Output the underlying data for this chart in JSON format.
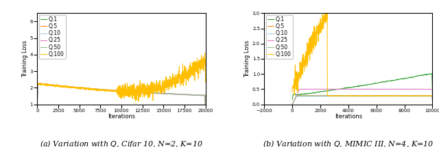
{
  "fig_width": 6.4,
  "fig_height": 2.15,
  "dpi": 100,
  "plot1": {
    "title": "(a) Variation with $Q$, Cifar 10, N=2, K=10",
    "xlabel": "Iterations",
    "ylabel": "Training Loss",
    "xlim": [
      0,
      20000
    ],
    "ylim": [
      1,
      6.5
    ],
    "yticks": [
      1,
      2,
      3,
      4,
      5,
      6
    ],
    "xticks": [
      0,
      2500,
      5000,
      7500,
      10000,
      12500,
      15000,
      17500,
      20000
    ],
    "series": [
      {
        "label": "Q:1",
        "color": "#2ca02c"
      },
      {
        "label": "Q:5",
        "color": "#ff7f0e"
      },
      {
        "label": "Q:10",
        "color": "#9ecae1"
      },
      {
        "label": "Q:25",
        "color": "#e377c2"
      },
      {
        "label": "Q:50",
        "color": "#8fbc8f"
      },
      {
        "label": "Q:100",
        "color": "#ffbf00"
      }
    ]
  },
  "plot2": {
    "title": "(b) Variation with $Q$, MIMIC III, N=4, K=10",
    "xlabel": "Iterations",
    "ylabel": "Training Loss",
    "xlim": [
      -2000,
      10000
    ],
    "ylim": [
      0.0,
      3.0
    ],
    "yticks": [
      0.0,
      0.5,
      1.0,
      1.5,
      2.0,
      2.5,
      3.0
    ],
    "xticks": [
      -2000,
      0,
      2000,
      4000,
      6000,
      8000,
      10000
    ],
    "series": [
      {
        "label": "Q:1",
        "color": "#2ca02c"
      },
      {
        "label": "Q:5",
        "color": "#ff7f0e"
      },
      {
        "label": "Q:10",
        "color": "#9ecae1"
      },
      {
        "label": "Q:25",
        "color": "#e377c2"
      },
      {
        "label": "Q:50",
        "color": "#8fbc8f"
      },
      {
        "label": "Q:100",
        "color": "#ffbf00"
      }
    ]
  },
  "legend_fontsize": 5.5,
  "tick_fontsize": 5,
  "label_fontsize": 6,
  "caption_fontsize": 8
}
